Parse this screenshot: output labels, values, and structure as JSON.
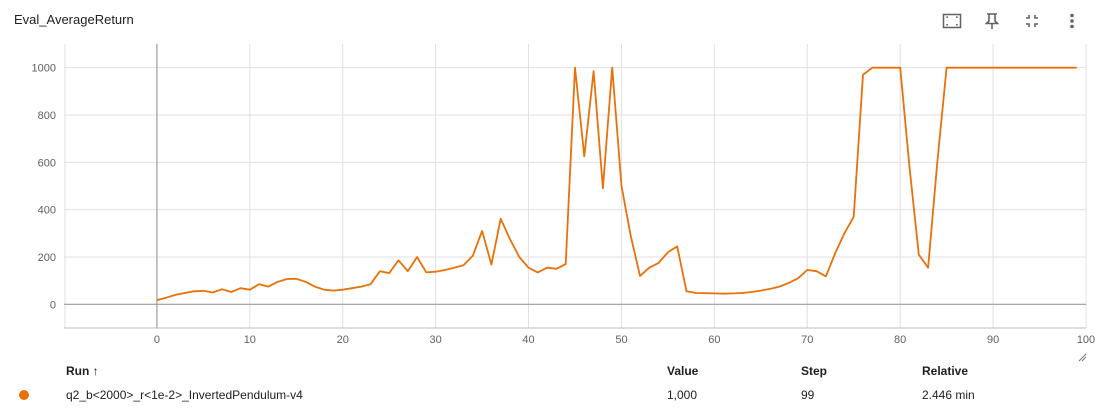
{
  "header": {
    "title": "Eval_AverageReturn"
  },
  "icons": {
    "fit_domain": "fit-to-data-icon",
    "pin": "pin-icon",
    "fullscreen": "collapse-icon",
    "more": "more-vert-icon"
  },
  "colors": {
    "series": "#e8710a",
    "grid": "#e0e0e0",
    "axis": "#9e9e9e"
  },
  "chart_data": {
    "type": "line",
    "xlim": [
      -10,
      100
    ],
    "ylim": [
      -100,
      1100
    ],
    "xticks": [
      0,
      10,
      20,
      30,
      40,
      50,
      60,
      70,
      80,
      90,
      100
    ],
    "yticks": [
      0,
      200,
      400,
      600,
      800,
      1000
    ],
    "grid": true,
    "series": [
      {
        "name": "q2_b<2000>_r<1e-2>_InvertedPendulum-v4",
        "x": [
          0,
          1,
          2,
          3,
          4,
          5,
          6,
          7,
          8,
          9,
          10,
          11,
          12,
          13,
          14,
          15,
          16,
          17,
          18,
          19,
          20,
          21,
          22,
          23,
          24,
          25,
          26,
          27,
          28,
          29,
          30,
          31,
          32,
          33,
          34,
          35,
          36,
          37,
          38,
          39,
          40,
          41,
          42,
          43,
          44,
          45,
          46,
          47,
          48,
          49,
          50,
          51,
          52,
          53,
          54,
          55,
          56,
          57,
          58,
          59,
          60,
          61,
          62,
          63,
          64,
          65,
          66,
          67,
          68,
          69,
          70,
          71,
          72,
          73,
          74,
          75,
          76,
          77,
          78,
          79,
          80,
          81,
          82,
          83,
          84,
          85,
          86,
          87,
          88,
          89,
          90,
          91,
          92,
          93,
          94,
          95,
          96,
          97,
          98,
          99
        ],
        "y": [
          18,
          28,
          40,
          48,
          55,
          57,
          50,
          64,
          52,
          68,
          62,
          85,
          75,
          95,
          107,
          108,
          95,
          75,
          62,
          58,
          62,
          68,
          75,
          85,
          140,
          132,
          186,
          140,
          200,
          135,
          138,
          145,
          155,
          165,
          205,
          310,
          168,
          362,
          275,
          200,
          155,
          135,
          155,
          150,
          170,
          1000,
          625,
          985,
          490,
          1000,
          500,
          290,
          120,
          155,
          175,
          220,
          245,
          55,
          48,
          47,
          46,
          45,
          46,
          48,
          52,
          58,
          65,
          75,
          90,
          110,
          145,
          140,
          118,
          215,
          300,
          370,
          970,
          1000,
          1000,
          1000,
          1000,
          580,
          210,
          155,
          600,
          1000,
          1000,
          1000,
          1000,
          1000,
          1000,
          1000,
          1000,
          1000,
          1000,
          1000,
          1000,
          1000,
          1000,
          1000
        ]
      }
    ]
  },
  "table": {
    "headers": {
      "run": "Run ↑",
      "value": "Value",
      "step": "Step",
      "relative": "Relative"
    },
    "rows": [
      {
        "run": "q2_b<2000>_r<1e-2>_InvertedPendulum-v4",
        "value": "1,000",
        "step": "99",
        "relative": "2.446 min"
      }
    ]
  }
}
